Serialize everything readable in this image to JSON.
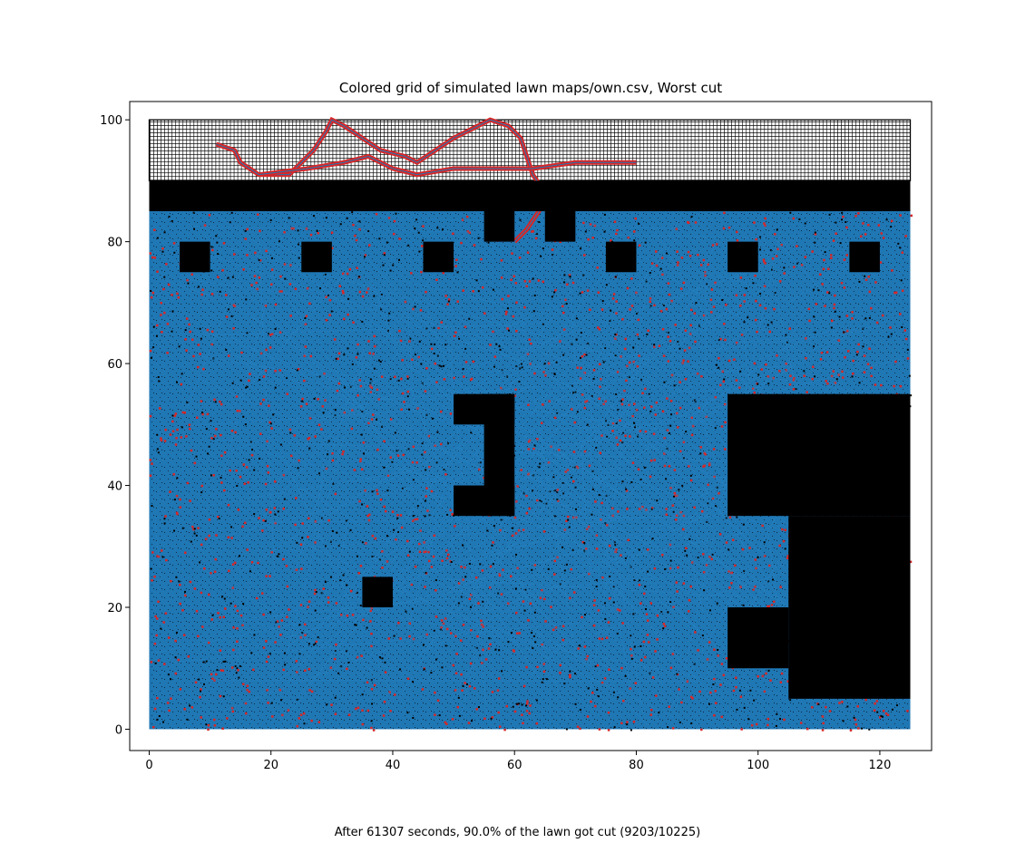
{
  "chart_data": {
    "type": "heatmap",
    "title": "Colored grid of simulated lawn maps/own.csv, Worst cut",
    "caption": "After 61307 seconds, 90.0% of the lawn got cut (9203/10225)",
    "xlim": [
      -3.2,
      128.5
    ],
    "ylim": [
      -3.5,
      103.0
    ],
    "x_ticks": [
      0,
      20,
      40,
      60,
      80,
      100,
      120
    ],
    "y_ticks": [
      0,
      20,
      40,
      60,
      80,
      100
    ],
    "grid": false,
    "colors": {
      "obstacle": "#000000",
      "path": "#1f77b4",
      "uncut_marker": "#d62728",
      "empty_cell": "#ffffff"
    },
    "lawn_region": {
      "x": [
        0,
        125
      ],
      "y": [
        0,
        85
      ]
    },
    "grid_region": {
      "x": [
        0,
        125
      ],
      "y": [
        90,
        100
      ]
    },
    "obstacles": [
      {
        "x": 0,
        "y": 85,
        "w": 125,
        "h": 5
      },
      {
        "x": 55,
        "y": 80,
        "w": 5,
        "h": 5
      },
      {
        "x": 65,
        "y": 80,
        "w": 5,
        "h": 5
      },
      {
        "x": 5,
        "y": 75,
        "w": 5,
        "h": 5
      },
      {
        "x": 25,
        "y": 75,
        "w": 5,
        "h": 5
      },
      {
        "x": 45,
        "y": 75,
        "w": 5,
        "h": 5
      },
      {
        "x": 75,
        "y": 75,
        "w": 5,
        "h": 5
      },
      {
        "x": 95,
        "y": 75,
        "w": 5,
        "h": 5
      },
      {
        "x": 115,
        "y": 75,
        "w": 5,
        "h": 5
      },
      {
        "x": 50,
        "y": 50,
        "w": 10,
        "h": 5
      },
      {
        "x": 55,
        "y": 35,
        "w": 5,
        "h": 20
      },
      {
        "x": 50,
        "y": 35,
        "w": 10,
        "h": 5
      },
      {
        "x": 35,
        "y": 20,
        "w": 5,
        "h": 5
      },
      {
        "x": 95,
        "y": 35,
        "w": 30,
        "h": 20
      },
      {
        "x": 105,
        "y": 5,
        "w": 20,
        "h": 30
      },
      {
        "x": 95,
        "y": 10,
        "w": 10,
        "h": 10
      }
    ],
    "red_path_upper": [
      [
        11,
        96
      ],
      [
        14,
        95
      ],
      [
        15,
        93
      ],
      [
        18,
        91
      ],
      [
        23,
        91
      ],
      [
        25,
        93
      ],
      [
        27,
        95
      ],
      [
        29,
        98
      ],
      [
        30,
        100
      ],
      [
        32,
        99
      ],
      [
        35,
        97
      ],
      [
        38,
        95
      ],
      [
        42,
        94
      ],
      [
        44,
        93
      ],
      [
        47,
        95
      ],
      [
        50,
        97
      ],
      [
        54,
        99
      ],
      [
        56,
        100
      ],
      [
        59,
        99
      ],
      [
        61,
        97
      ],
      [
        62,
        94
      ],
      [
        63,
        91
      ],
      [
        65,
        88
      ],
      [
        64,
        85
      ],
      [
        62,
        82
      ],
      [
        60,
        80
      ]
    ],
    "red_path_lower": [
      [
        18,
        91
      ],
      [
        26,
        92
      ],
      [
        32,
        93
      ],
      [
        36,
        94
      ],
      [
        40,
        92
      ],
      [
        44,
        91
      ],
      [
        50,
        92
      ],
      [
        55,
        92
      ],
      [
        60,
        92
      ],
      [
        63,
        92
      ],
      [
        70,
        93
      ],
      [
        80,
        93
      ]
    ]
  }
}
